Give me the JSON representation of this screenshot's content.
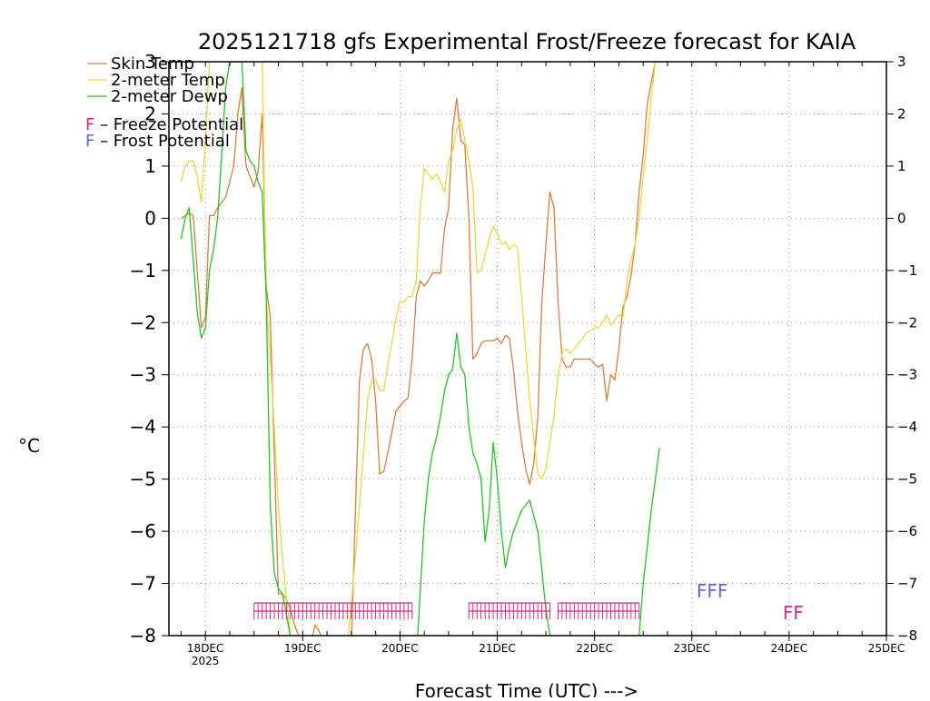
{
  "chart_data": {
    "type": "line",
    "title": "2025121718 gfs Experimental Frost/Freeze forecast for KAIA",
    "xlabel": "Forecast Time (UTC) --->",
    "ylabel": "°C",
    "ylim": [
      -8,
      3
    ],
    "y_ticks": [
      3,
      2,
      1,
      0,
      -1,
      -2,
      -3,
      -4,
      -5,
      -6,
      -7,
      -8
    ],
    "y_tick_labels": [
      "3",
      "2",
      "1",
      "0",
      "−1",
      "−2",
      "−3",
      "−4",
      "−5",
      "−6",
      "−7",
      "−8"
    ],
    "xlim_hours": [
      -3,
      174
    ],
    "x_ticks": [
      {
        "hour": 6,
        "label": "18DEC",
        "sublabel": "2025"
      },
      {
        "hour": 30,
        "label": "19DEC"
      },
      {
        "hour": 54,
        "label": "20DEC"
      },
      {
        "hour": 78,
        "label": "21DEC"
      },
      {
        "hour": 102,
        "label": "22DEC"
      },
      {
        "hour": 126,
        "label": "23DEC"
      },
      {
        "hour": 150,
        "label": "24DEC"
      },
      {
        "hour": 174,
        "label": "25DEC"
      }
    ],
    "grid": true,
    "legend": [
      {
        "label": "Skin Temp",
        "color": "#e07b3a"
      },
      {
        "label": "2-meter Temp",
        "color": "#e8d93a"
      },
      {
        "label": "2-meter Dewp",
        "color": "#22c422"
      }
    ],
    "potential_legend": [
      {
        "letter": "F",
        "text": " – Freeze Potential",
        "color": "#d6287e"
      },
      {
        "letter": "F",
        "text": " – Frost Potential",
        "color": "#5c6ad6"
      }
    ],
    "series": [
      {
        "name": "Skin Temp",
        "color": "#e07b3a",
        "x": [
          0,
          2,
          3,
          4,
          5,
          6,
          7,
          8,
          9,
          10,
          11,
          12,
          13,
          14,
          15,
          16,
          17,
          18,
          19,
          20,
          21,
          22,
          23,
          24,
          25,
          26,
          27,
          28,
          29,
          30,
          31,
          32,
          33,
          34,
          35,
          36,
          37,
          38,
          39,
          40,
          41,
          42,
          44,
          45,
          46,
          47,
          48,
          49,
          50,
          51,
          52,
          53,
          54,
          55,
          56,
          57,
          58,
          59,
          60,
          61,
          62,
          63,
          64,
          65,
          66,
          67,
          68,
          69,
          70,
          71,
          72,
          73,
          74,
          75,
          76,
          77,
          78,
          79,
          80,
          81,
          82,
          83,
          84,
          85,
          86,
          87,
          88,
          89,
          90,
          91,
          92,
          93,
          94,
          95,
          96,
          97,
          98,
          99,
          100,
          101,
          102,
          103,
          104,
          105,
          106,
          107,
          108,
          109,
          110,
          111,
          112,
          113,
          114,
          115,
          116,
          117,
          118
        ],
        "values": [
          0.0,
          0.1,
          0.05,
          -1.0,
          -2.1,
          -1.9,
          0.05,
          0.05,
          0.2,
          0.3,
          0.4,
          0.7,
          1.0,
          2.0,
          2.5,
          1.0,
          0.8,
          0.6,
          0.9,
          2.0,
          -1.3,
          -1.9,
          -4.5,
          -7.2,
          -7.2,
          -7.3,
          -7.5,
          -7.8,
          -8.0,
          -8.5,
          -8.5,
          -8.2,
          -7.8,
          -7.9,
          -8.1,
          -8.5,
          -8.5,
          -8.5,
          -8.5,
          -8.5,
          -8.5,
          -8.2,
          -3.1,
          -2.5,
          -2.4,
          -2.7,
          -3.5,
          -4.9,
          -4.85,
          -4.5,
          -4.1,
          -3.7,
          -3.6,
          -3.5,
          -3.45,
          -2.7,
          -1.5,
          -1.2,
          -1.3,
          -1.2,
          -1.05,
          -1.05,
          -1.05,
          -0.2,
          0.2,
          1.7,
          2.3,
          1.5,
          1.4,
          0.0,
          -2.7,
          -2.6,
          -2.4,
          -2.35,
          -2.35,
          -2.35,
          -2.3,
          -2.4,
          -2.25,
          -2.3,
          -2.9,
          -3.7,
          -4.3,
          -4.8,
          -5.1,
          -4.7,
          -3.8,
          -1.6,
          -0.5,
          0.5,
          0.2,
          -1.6,
          -2.7,
          -2.85,
          -2.85,
          -2.7,
          -2.7,
          -2.7,
          -2.7,
          -2.7,
          -2.8,
          -2.85,
          -2.8,
          -3.5,
          -3.0,
          -3.1,
          -2.5,
          -1.7,
          -1.5,
          -1.1,
          -0.5,
          0.5,
          1.2,
          2.2,
          2.6,
          3.0,
          3.0
        ]
      },
      {
        "name": "2-meter Temp",
        "color": "#e8d93a",
        "x": [
          0,
          1,
          2,
          3,
          4,
          5,
          6,
          7,
          8,
          9,
          10,
          11,
          12,
          13,
          14,
          15,
          16,
          17,
          18,
          19,
          20,
          21,
          22,
          23,
          24,
          25,
          26,
          27,
          28,
          29,
          30,
          31,
          32,
          33,
          34,
          35,
          36,
          37,
          38,
          39,
          40,
          41,
          42,
          43,
          44,
          45,
          46,
          47,
          48,
          49,
          50,
          51,
          52,
          53,
          54,
          55,
          56,
          57,
          58,
          59,
          60,
          61,
          62,
          63,
          64,
          65,
          66,
          67,
          68,
          69,
          70,
          71,
          72,
          73,
          74,
          75,
          76,
          77,
          78,
          79,
          80,
          81,
          82,
          83,
          84,
          85,
          86,
          87,
          88,
          89,
          90,
          91,
          92,
          93,
          94,
          95,
          96,
          97,
          98,
          99,
          100,
          101,
          102,
          103,
          104,
          105,
          106,
          107,
          108,
          109,
          110,
          111,
          112,
          113,
          114,
          115,
          116,
          117,
          118
        ],
        "values": [
          0.7,
          1.0,
          1.1,
          1.1,
          0.8,
          0.3,
          1.5,
          3.0,
          3.0,
          3.0,
          3.0,
          3.0,
          3.0,
          3.0,
          3.0,
          3.0,
          3.0,
          3.0,
          3.0,
          3.0,
          3.0,
          -1.5,
          -2.7,
          -4.0,
          -5.5,
          -6.5,
          -7.3,
          -8.0,
          -8.5,
          -8.5,
          -8.5,
          -8.5,
          -8.5,
          -8.5,
          -8.5,
          -8.5,
          -8.5,
          -8.5,
          -8.5,
          -8.5,
          -8.5,
          -8.2,
          -7.4,
          -6.5,
          -5.5,
          -4.5,
          -3.5,
          -3.1,
          -3.1,
          -3.3,
          -3.3,
          -2.8,
          -2.4,
          -1.9,
          -1.6,
          -1.6,
          -1.5,
          -1.5,
          -1.2,
          0.2,
          0.95,
          0.85,
          0.75,
          0.85,
          0.7,
          0.5,
          1.1,
          1.3,
          1.7,
          1.9,
          1.5,
          1.1,
          0.6,
          -1.05,
          -1.0,
          -0.7,
          -0.4,
          -0.15,
          -0.3,
          -0.5,
          -0.45,
          -0.6,
          -0.5,
          -0.55,
          -1.5,
          -2.5,
          -3.5,
          -4.2,
          -4.9,
          -5.0,
          -4.8,
          -4.3,
          -3.8,
          -3.0,
          -2.6,
          -2.5,
          -2.6,
          -2.5,
          -2.4,
          -2.3,
          -2.2,
          -2.15,
          -2.1,
          -2.1,
          -2.0,
          -1.85,
          -2.05,
          -1.95,
          -1.85,
          -1.9,
          -1.2,
          -0.8,
          -0.5,
          0.0,
          0.8,
          1.5,
          2.3,
          3.0,
          3.0
        ]
      },
      {
        "name": "2-meter Dewp",
        "color": "#22c422",
        "x": [
          0,
          1,
          2,
          3,
          4,
          5,
          6,
          7,
          8,
          9,
          10,
          11,
          12,
          13,
          14,
          15,
          16,
          17,
          18,
          19,
          20,
          21,
          22,
          23,
          24,
          25,
          26,
          28,
          30,
          32,
          34,
          36,
          38,
          40,
          42,
          44,
          46,
          48,
          50,
          52,
          54,
          56,
          58,
          60,
          61,
          62,
          63,
          64,
          65,
          66,
          67,
          68,
          69,
          70,
          71,
          72,
          73,
          74,
          75,
          76,
          77,
          78,
          79,
          80,
          81,
          82,
          84,
          86,
          88,
          90,
          92,
          94,
          96,
          98,
          100,
          102,
          104,
          106,
          108,
          110,
          112,
          113,
          114,
          115,
          116,
          117,
          118
        ],
        "values": [
          -0.4,
          0.0,
          0.2,
          -0.8,
          -1.8,
          -2.3,
          -2.1,
          -1.0,
          -0.6,
          0.0,
          1.2,
          2.5,
          3.0,
          3.0,
          3.0,
          3.0,
          1.3,
          1.1,
          1.0,
          0.7,
          0.5,
          -1.5,
          -5.5,
          -6.8,
          -7.1,
          -7.2,
          -7.6,
          -8.5,
          -8.5,
          -8.5,
          -8.5,
          -8.5,
          -8.5,
          -8.5,
          -8.5,
          -8.5,
          -8.5,
          -8.5,
          -8.5,
          -8.5,
          -8.5,
          -8.5,
          -8.5,
          -5.8,
          -5.0,
          -4.5,
          -4.2,
          -3.8,
          -3.3,
          -3.0,
          -2.9,
          -2.2,
          -2.85,
          -3.0,
          -4.0,
          -4.5,
          -4.7,
          -5.0,
          -6.2,
          -5.6,
          -4.3,
          -5.0,
          -6.0,
          -6.7,
          -6.3,
          -6.0,
          -5.6,
          -5.4,
          -6.0,
          -7.5,
          -8.5,
          -8.5,
          -8.5,
          -8.5,
          -8.5,
          -8.5,
          -8.5,
          -8.5,
          -8.5,
          -8.5,
          -8.5,
          -8.0,
          -7.0,
          -6.3,
          -5.6,
          -5.0,
          -4.4
        ]
      }
    ],
    "freeze_potential": {
      "color": "#d6287e",
      "label_row": "FF",
      "ranges": [
        [
          18,
          57
        ],
        [
          71,
          91
        ],
        [
          93,
          113
        ]
      ],
      "label_hour": 151
    },
    "frost_potential": {
      "color": "#5c6ad6",
      "label_row": "FFF",
      "label_hour": 131
    }
  }
}
